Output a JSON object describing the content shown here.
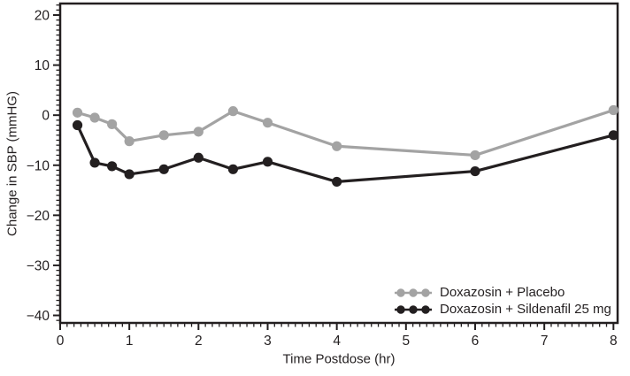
{
  "chart_data": {
    "type": "line",
    "title": "",
    "xlabel": "Time Postdose (hr)",
    "ylabel": "Change in SBP (mmHG)",
    "x": [
      0.25,
      0.5,
      0.75,
      1,
      1.5,
      2,
      2.5,
      3,
      4,
      6,
      8
    ],
    "series": [
      {
        "name": "Doxazosin + Placebo",
        "color": "#a3a3a3",
        "values": [
          0.5,
          -0.5,
          -1.8,
          -5.2,
          -4.0,
          -3.3,
          0.8,
          -1.5,
          -6.2,
          -8.0,
          1.0
        ]
      },
      {
        "name": "Doxazosin + Sildenafil 25 mg",
        "color": "#231f20",
        "values": [
          -2.0,
          -9.5,
          -10.2,
          -11.8,
          -10.8,
          -8.5,
          -10.8,
          -9.3,
          -13.3,
          -11.2,
          -4.0
        ]
      }
    ],
    "xlim": [
      0,
      8.06
    ],
    "ylim": [
      -41.5,
      22.3
    ],
    "x_major_ticks": [
      0,
      1,
      2,
      3,
      4,
      5,
      6,
      7,
      8
    ],
    "x_minor_step": 0.1,
    "y_major_ticks": [
      20,
      10,
      0,
      -10,
      -20,
      -30,
      -40
    ],
    "y_minor_step": 1,
    "grid": false,
    "frame": true,
    "legend_position": "bottom-right",
    "axis_color": "#231f20",
    "background_color": "#ffffff"
  }
}
